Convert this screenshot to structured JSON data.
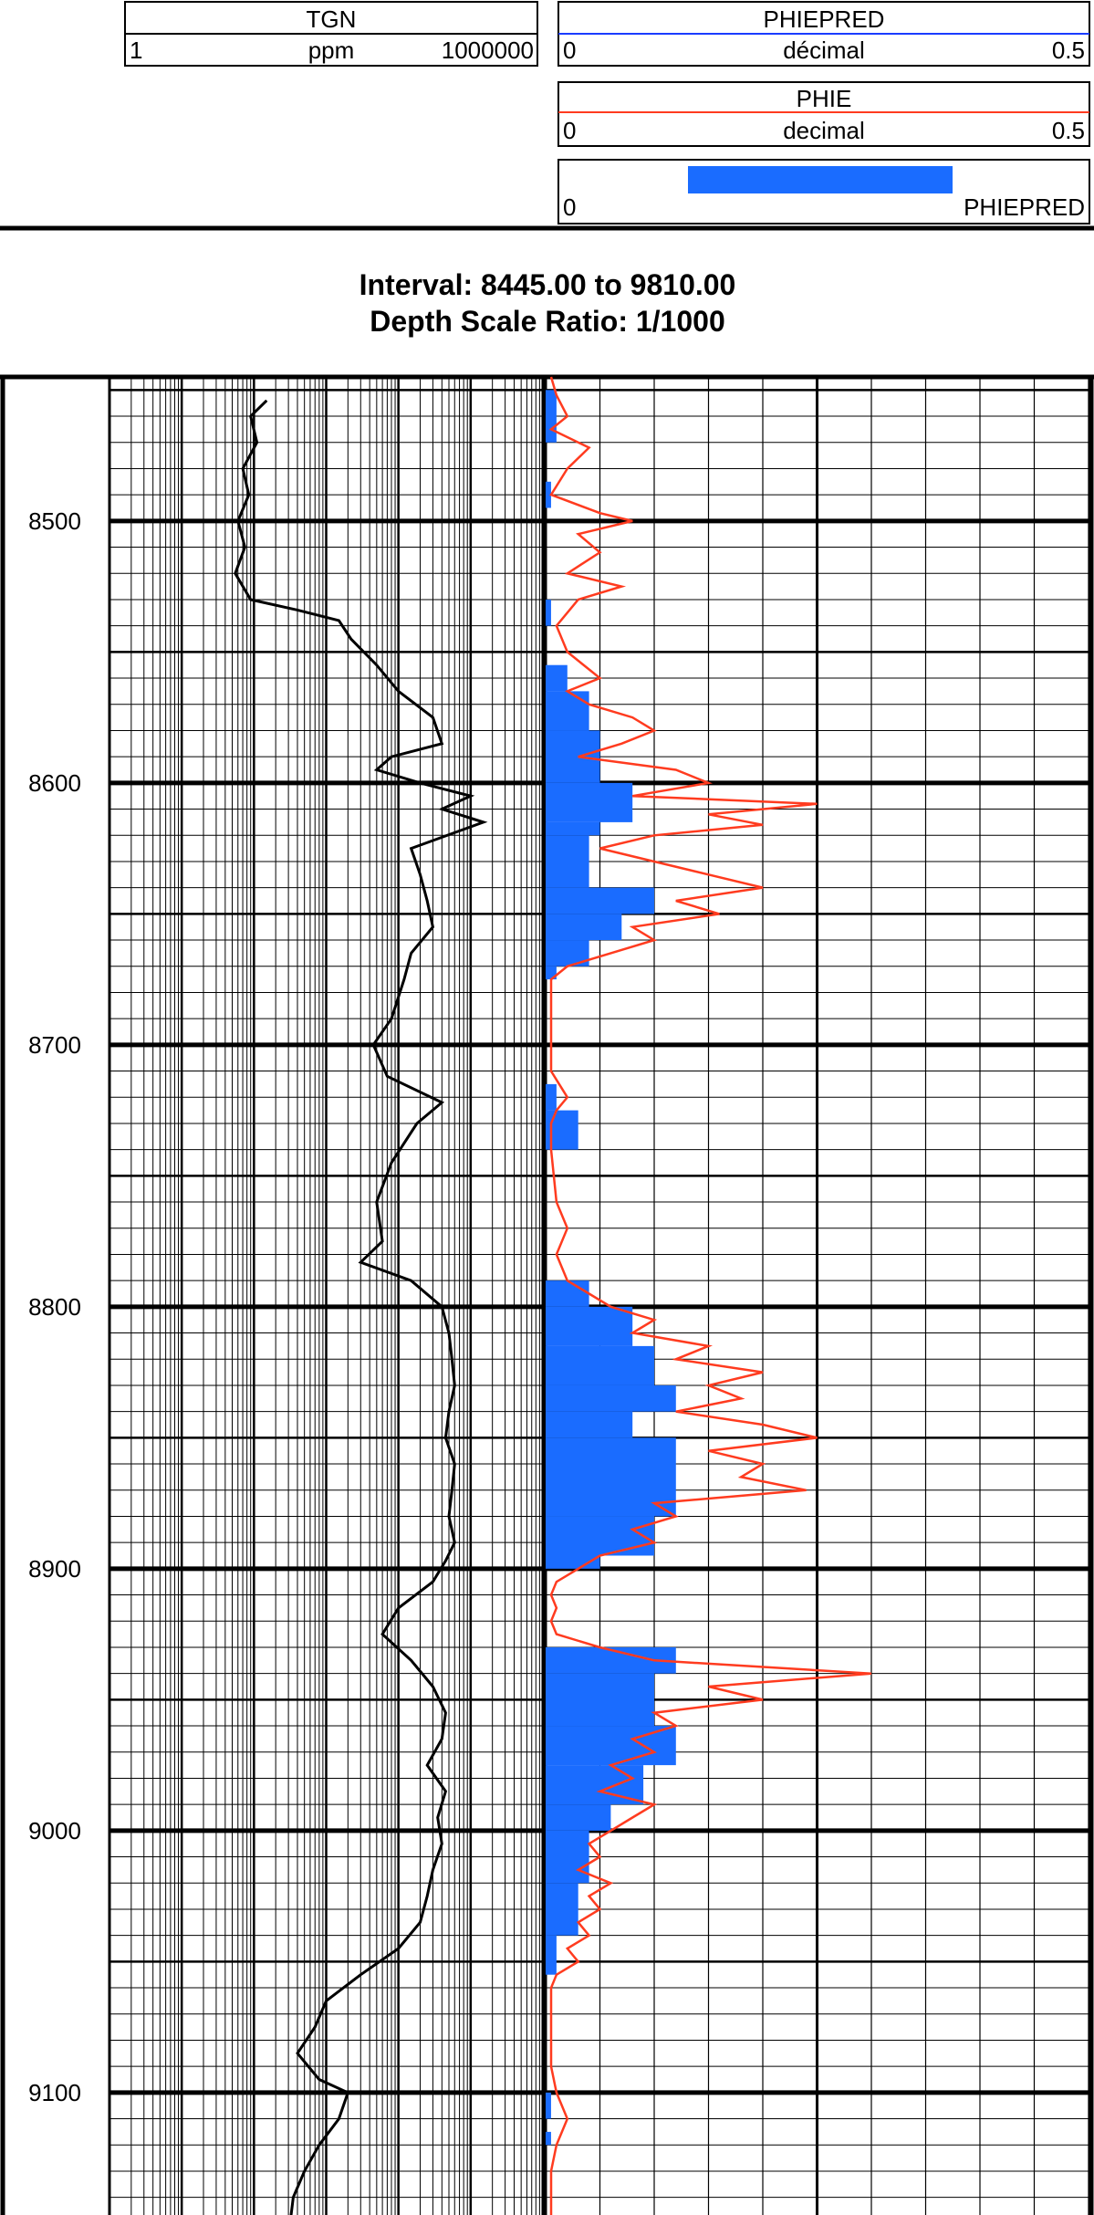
{
  "headers": {
    "tgn": {
      "name": "TGN",
      "min": "1",
      "unit": "ppm",
      "max": "1000000"
    },
    "phiepred": {
      "name": "PHIEPRED",
      "min": "0",
      "unit": "décimal",
      "max": "0.5"
    },
    "phie": {
      "name": "PHIE",
      "min": "0",
      "unit": "decimal",
      "max": "0.5"
    },
    "fill": {
      "min": "0",
      "label": "PHIEPRED"
    }
  },
  "interval_text": "Interval:  8445.00  to 9810.00",
  "depth_scale_text": "Depth Scale Ratio: 1/1000",
  "colors": {
    "phie": "#ff3b1f",
    "phiepred_fill": "#1a6cff",
    "tgn": "#000000"
  },
  "chart_data": {
    "type": "line",
    "title": "",
    "depth_range": [
      8445,
      9810
    ],
    "visible_depth_range": [
      8445,
      9155
    ],
    "depth_ticks": [
      "8500",
      "8600",
      "8700",
      "8800",
      "8900",
      "9000",
      "9100"
    ],
    "tgn_xlim": [
      1,
      1000000
    ],
    "tgn_scale": "log",
    "phi_xlim": [
      0,
      0.5
    ],
    "series": [
      {
        "name": "TGN",
        "points": [
          [
            8454,
            150
          ],
          [
            8460,
            90
          ],
          [
            8470,
            110
          ],
          [
            8480,
            70
          ],
          [
            8490,
            85
          ],
          [
            8500,
            60
          ],
          [
            8510,
            75
          ],
          [
            8520,
            55
          ],
          [
            8530,
            90
          ],
          [
            8534,
            400
          ],
          [
            8538,
            1500
          ],
          [
            8545,
            2200
          ],
          [
            8555,
            5000
          ],
          [
            8565,
            10000
          ],
          [
            8575,
            30000
          ],
          [
            8585,
            40000
          ],
          [
            8590,
            8000
          ],
          [
            8595,
            5000
          ],
          [
            8600,
            20000
          ],
          [
            8605,
            100000
          ],
          [
            8610,
            40000
          ],
          [
            8615,
            150000
          ],
          [
            8625,
            15000
          ],
          [
            8635,
            20000
          ],
          [
            8645,
            25000
          ],
          [
            8655,
            30000
          ],
          [
            8665,
            15000
          ],
          [
            8675,
            12000
          ],
          [
            8690,
            8000
          ],
          [
            8700,
            4500
          ],
          [
            8712,
            7000
          ],
          [
            8722,
            40000
          ],
          [
            8730,
            18000
          ],
          [
            8745,
            8000
          ],
          [
            8760,
            5000
          ],
          [
            8775,
            6000
          ],
          [
            8783,
            3000
          ],
          [
            8790,
            15000
          ],
          [
            8800,
            40000
          ],
          [
            8810,
            50000
          ],
          [
            8820,
            55000
          ],
          [
            8830,
            60000
          ],
          [
            8840,
            50000
          ],
          [
            8850,
            45000
          ],
          [
            8860,
            60000
          ],
          [
            8870,
            55000
          ],
          [
            8880,
            50000
          ],
          [
            8890,
            60000
          ],
          [
            8897,
            45000
          ],
          [
            8905,
            30000
          ],
          [
            8915,
            10000
          ],
          [
            8925,
            6000
          ],
          [
            8935,
            15000
          ],
          [
            8945,
            30000
          ],
          [
            8955,
            45000
          ],
          [
            8965,
            40000
          ],
          [
            8975,
            25000
          ],
          [
            8985,
            45000
          ],
          [
            8995,
            35000
          ],
          [
            9005,
            40000
          ],
          [
            9015,
            30000
          ],
          [
            9025,
            25000
          ],
          [
            9035,
            20000
          ],
          [
            9045,
            10000
          ],
          [
            9055,
            3000
          ],
          [
            9065,
            1000
          ],
          [
            9075,
            700
          ],
          [
            9085,
            400
          ],
          [
            9095,
            800
          ],
          [
            9100,
            2000
          ],
          [
            9110,
            1500
          ],
          [
            9120,
            800
          ],
          [
            9130,
            500
          ],
          [
            9140,
            350
          ],
          [
            9155,
            300
          ]
        ]
      },
      {
        "name": "PHIE",
        "points": [
          [
            8445,
            0.005
          ],
          [
            8452,
            0.01
          ],
          [
            8460,
            0.02
          ],
          [
            8465,
            0.005
          ],
          [
            8472,
            0.04
          ],
          [
            8480,
            0.02
          ],
          [
            8490,
            0.005
          ],
          [
            8497,
            0.05
          ],
          [
            8500,
            0.08
          ],
          [
            8505,
            0.03
          ],
          [
            8512,
            0.05
          ],
          [
            8520,
            0.02
          ],
          [
            8525,
            0.07
          ],
          [
            8530,
            0.03
          ],
          [
            8540,
            0.01
          ],
          [
            8550,
            0.02
          ],
          [
            8560,
            0.05
          ],
          [
            8565,
            0.02
          ],
          [
            8570,
            0.04
          ],
          [
            8575,
            0.08
          ],
          [
            8580,
            0.1
          ],
          [
            8585,
            0.07
          ],
          [
            8590,
            0.03
          ],
          [
            8595,
            0.12
          ],
          [
            8600,
            0.15
          ],
          [
            8605,
            0.08
          ],
          [
            8608,
            0.25
          ],
          [
            8612,
            0.15
          ],
          [
            8616,
            0.2
          ],
          [
            8620,
            0.1
          ],
          [
            8625,
            0.05
          ],
          [
            8630,
            0.1
          ],
          [
            8635,
            0.15
          ],
          [
            8640,
            0.2
          ],
          [
            8645,
            0.12
          ],
          [
            8650,
            0.16
          ],
          [
            8655,
            0.08
          ],
          [
            8660,
            0.1
          ],
          [
            8665,
            0.06
          ],
          [
            8670,
            0.02
          ],
          [
            8675,
            0.005
          ],
          [
            8685,
            0.005
          ],
          [
            8700,
            0.005
          ],
          [
            8710,
            0.005
          ],
          [
            8720,
            0.02
          ],
          [
            8725,
            0.01
          ],
          [
            8730,
            0.005
          ],
          [
            8740,
            0.005
          ],
          [
            8760,
            0.01
          ],
          [
            8770,
            0.02
          ],
          [
            8780,
            0.01
          ],
          [
            8790,
            0.02
          ],
          [
            8795,
            0.04
          ],
          [
            8800,
            0.06
          ],
          [
            8805,
            0.1
          ],
          [
            8810,
            0.08
          ],
          [
            8815,
            0.15
          ],
          [
            8820,
            0.12
          ],
          [
            8825,
            0.2
          ],
          [
            8830,
            0.15
          ],
          [
            8835,
            0.18
          ],
          [
            8840,
            0.12
          ],
          [
            8845,
            0.2
          ],
          [
            8850,
            0.25
          ],
          [
            8855,
            0.15
          ],
          [
            8860,
            0.2
          ],
          [
            8865,
            0.18
          ],
          [
            8870,
            0.24
          ],
          [
            8875,
            0.1
          ],
          [
            8880,
            0.12
          ],
          [
            8885,
            0.08
          ],
          [
            8890,
            0.1
          ],
          [
            8895,
            0.05
          ],
          [
            8900,
            0.03
          ],
          [
            8905,
            0.01
          ],
          [
            8910,
            0.005
          ],
          [
            8915,
            0.01
          ],
          [
            8920,
            0.005
          ],
          [
            8925,
            0.01
          ],
          [
            8930,
            0.05
          ],
          [
            8935,
            0.1
          ],
          [
            8940,
            0.3
          ],
          [
            8945,
            0.15
          ],
          [
            8950,
            0.2
          ],
          [
            8955,
            0.1
          ],
          [
            8960,
            0.12
          ],
          [
            8965,
            0.08
          ],
          [
            8970,
            0.1
          ],
          [
            8975,
            0.06
          ],
          [
            8980,
            0.08
          ],
          [
            8985,
            0.05
          ],
          [
            8990,
            0.1
          ],
          [
            8995,
            0.08
          ],
          [
            9000,
            0.06
          ],
          [
            9005,
            0.04
          ],
          [
            9010,
            0.05
          ],
          [
            9015,
            0.03
          ],
          [
            9020,
            0.06
          ],
          [
            9025,
            0.04
          ],
          [
            9030,
            0.05
          ],
          [
            9035,
            0.03
          ],
          [
            9040,
            0.04
          ],
          [
            9045,
            0.02
          ],
          [
            9050,
            0.03
          ],
          [
            9055,
            0.01
          ],
          [
            9060,
            0.005
          ],
          [
            9070,
            0.005
          ],
          [
            9080,
            0.005
          ],
          [
            9090,
            0.005
          ],
          [
            9100,
            0.01
          ],
          [
            9110,
            0.02
          ],
          [
            9120,
            0.01
          ],
          [
            9130,
            0.005
          ],
          [
            9155,
            0.005
          ]
        ]
      },
      {
        "name": "PHIEPRED",
        "blocks": [
          [
            8450,
            8470,
            0.01
          ],
          [
            8485,
            8495,
            0.005
          ],
          [
            8530,
            8540,
            0.005
          ],
          [
            8555,
            8565,
            0.02
          ],
          [
            8565,
            8580,
            0.04
          ],
          [
            8580,
            8600,
            0.05
          ],
          [
            8600,
            8615,
            0.08
          ],
          [
            8615,
            8620,
            0.05
          ],
          [
            8620,
            8640,
            0.04
          ],
          [
            8640,
            8650,
            0.1
          ],
          [
            8650,
            8660,
            0.07
          ],
          [
            8660,
            8670,
            0.04
          ],
          [
            8670,
            8675,
            0.01
          ],
          [
            8715,
            8725,
            0.01
          ],
          [
            8725,
            8740,
            0.03
          ],
          [
            8790,
            8800,
            0.04
          ],
          [
            8800,
            8815,
            0.08
          ],
          [
            8815,
            8830,
            0.1
          ],
          [
            8830,
            8840,
            0.12
          ],
          [
            8840,
            8850,
            0.08
          ],
          [
            8850,
            8880,
            0.12
          ],
          [
            8880,
            8895,
            0.1
          ],
          [
            8895,
            8900,
            0.05
          ],
          [
            8930,
            8940,
            0.12
          ],
          [
            8940,
            8960,
            0.1
          ],
          [
            8960,
            8975,
            0.12
          ],
          [
            8975,
            8990,
            0.09
          ],
          [
            8990,
            9000,
            0.06
          ],
          [
            9000,
            9020,
            0.04
          ],
          [
            9020,
            9040,
            0.03
          ],
          [
            9040,
            9055,
            0.01
          ],
          [
            9100,
            9110,
            0.005
          ],
          [
            9115,
            9120,
            0.005
          ]
        ]
      }
    ]
  }
}
